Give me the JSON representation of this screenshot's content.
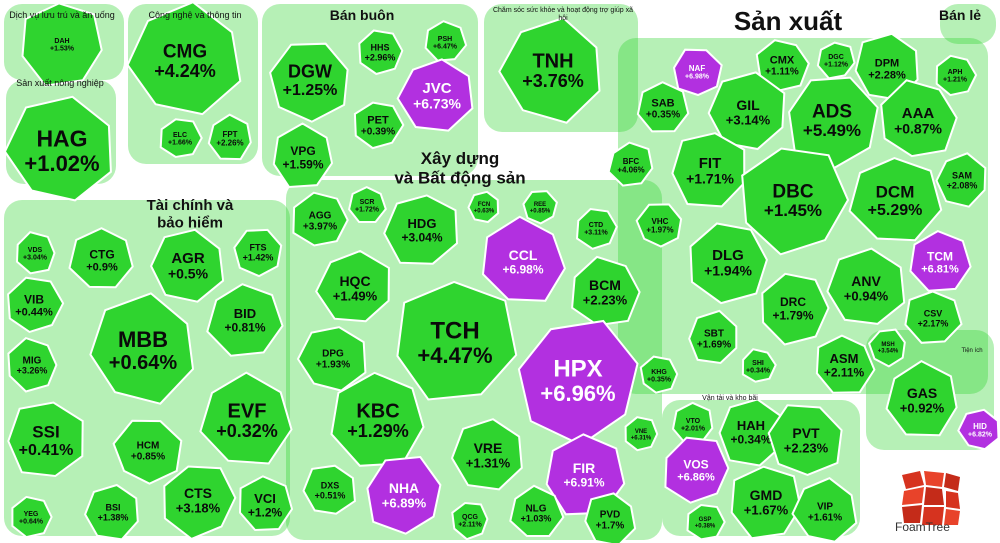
{
  "colors": {
    "up": "#2fd42f",
    "ceiling": "#b230e0",
    "bg": "#ffffff"
  },
  "groups": [
    {
      "name": "Dịch vụ lưu trú và ăn uống"
    },
    {
      "name": "Công nghệ và thông tin"
    },
    {
      "name": "Bán buôn"
    },
    {
      "name": "Chăm sóc sức khỏe và hoạt động trợ giúp xã hội"
    },
    {
      "name": "Sản xuất"
    },
    {
      "name": "Bán lẻ"
    },
    {
      "name": "Sản xuất nông nghiệp"
    },
    {
      "name": "Xây dựng và Bất động sản"
    },
    {
      "name": "Tài chính và bảo hiểm"
    },
    {
      "name": "Vận tải và kho bãi"
    },
    {
      "name": "Tiện ích"
    }
  ],
  "brand": "FoamTree",
  "chart_data": {
    "type": "treemap",
    "title": "",
    "series": [
      {
        "ticker": "DAH",
        "change": "+1.53%",
        "group": "Dịch vụ lưu trú và ăn uống",
        "ceiling": false
      },
      {
        "ticker": "CMG",
        "change": "+4.24%",
        "group": "Công nghệ và thông tin",
        "ceiling": false
      },
      {
        "ticker": "ELC",
        "change": "+1.66%",
        "group": "Công nghệ và thông tin",
        "ceiling": false
      },
      {
        "ticker": "FPT",
        "change": "+2.26%",
        "group": "Công nghệ và thông tin",
        "ceiling": false
      },
      {
        "ticker": "HAG",
        "change": "+1.02%",
        "group": "Sản xuất nông nghiệp",
        "ceiling": false
      },
      {
        "ticker": "DGW",
        "change": "+1.25%",
        "group": "Bán buôn",
        "ceiling": false
      },
      {
        "ticker": "HHS",
        "change": "+2.96%",
        "group": "Bán buôn",
        "ceiling": false
      },
      {
        "ticker": "PSH",
        "change": "+6.47%",
        "group": "Bán buôn",
        "ceiling": false
      },
      {
        "ticker": "JVC",
        "change": "+6.73%",
        "group": "Bán buôn",
        "ceiling": true
      },
      {
        "ticker": "PET",
        "change": "+0.39%",
        "group": "Bán buôn",
        "ceiling": false
      },
      {
        "ticker": "VPG",
        "change": "+1.59%",
        "group": "Bán buôn",
        "ceiling": false
      },
      {
        "ticker": "TNH",
        "change": "+3.76%",
        "group": "Chăm sóc sức khỏe và hoạt động trợ giúp xã hội",
        "ceiling": false
      },
      {
        "ticker": "NAF",
        "change": "+6.98%",
        "group": "Sản xuất",
        "ceiling": true
      },
      {
        "ticker": "CMX",
        "change": "+1.11%",
        "group": "Sản xuất",
        "ceiling": false
      },
      {
        "ticker": "DGC",
        "change": "+1.12%",
        "group": "Sản xuất",
        "ceiling": false
      },
      {
        "ticker": "DPM",
        "change": "+2.28%",
        "group": "Sản xuất",
        "ceiling": false
      },
      {
        "ticker": "APH",
        "change": "+1.21%",
        "group": "Sản xuất",
        "ceiling": false
      },
      {
        "ticker": "SAB",
        "change": "+0.35%",
        "group": "Sản xuất",
        "ceiling": false
      },
      {
        "ticker": "GIL",
        "change": "+3.14%",
        "group": "Sản xuất",
        "ceiling": false
      },
      {
        "ticker": "ADS",
        "change": "+5.49%",
        "group": "Sản xuất",
        "ceiling": false
      },
      {
        "ticker": "AAA",
        "change": "+0.87%",
        "group": "Sản xuất",
        "ceiling": false
      },
      {
        "ticker": "BFC",
        "change": "+4.06%",
        "group": "Sản xuất",
        "ceiling": false
      },
      {
        "ticker": "FIT",
        "change": "+1.71%",
        "group": "Sản xuất",
        "ceiling": false
      },
      {
        "ticker": "DBC",
        "change": "+1.45%",
        "group": "Sản xuất",
        "ceiling": false
      },
      {
        "ticker": "DCM",
        "change": "+5.29%",
        "group": "Sản xuất",
        "ceiling": false
      },
      {
        "ticker": "SAM",
        "change": "+2.08%",
        "group": "Sản xuất",
        "ceiling": false
      },
      {
        "ticker": "VHC",
        "change": "+1.97%",
        "group": "Sản xuất",
        "ceiling": false
      },
      {
        "ticker": "DLG",
        "change": "+1.94%",
        "group": "Sản xuất",
        "ceiling": false
      },
      {
        "ticker": "TCM",
        "change": "+6.81%",
        "group": "Sản xuất",
        "ceiling": true
      },
      {
        "ticker": "ANV",
        "change": "+0.94%",
        "group": "Sản xuất",
        "ceiling": false
      },
      {
        "ticker": "DRC",
        "change": "+1.79%",
        "group": "Sản xuất",
        "ceiling": false
      },
      {
        "ticker": "CSV",
        "change": "+2.17%",
        "group": "Sản xuất",
        "ceiling": false
      },
      {
        "ticker": "SBT",
        "change": "+1.69%",
        "group": "Sản xuất",
        "ceiling": false
      },
      {
        "ticker": "MSH",
        "change": "+3.54%",
        "group": "Sản xuất",
        "ceiling": false
      },
      {
        "ticker": "SHI",
        "change": "+0.34%",
        "group": "Sản xuất",
        "ceiling": false
      },
      {
        "ticker": "ASM",
        "change": "+2.11%",
        "group": "Sản xuất",
        "ceiling": false
      },
      {
        "ticker": "HDG",
        "change": "+3.04%",
        "group": "Xây dựng và Bất động sản",
        "ceiling": false
      },
      {
        "ticker": "AGG",
        "change": "+3.97%",
        "group": "Xây dựng và Bất động sản",
        "ceiling": false
      },
      {
        "ticker": "SCR",
        "change": "+1.72%",
        "group": "Xây dựng và Bất động sản",
        "ceiling": false
      },
      {
        "ticker": "FCN",
        "change": "+0.63%",
        "group": "Xây dựng và Bất động sản",
        "ceiling": false
      },
      {
        "ticker": "REE",
        "change": "+0.85%",
        "group": "Xây dựng và Bất động sản",
        "ceiling": false
      },
      {
        "ticker": "CTD",
        "change": "+3.11%",
        "group": "Xây dựng và Bất động sản",
        "ceiling": false
      },
      {
        "ticker": "CCL",
        "change": "+6.98%",
        "group": "Xây dựng và Bất động sản",
        "ceiling": true
      },
      {
        "ticker": "HQC",
        "change": "+1.49%",
        "group": "Xây dựng và Bất động sản",
        "ceiling": false
      },
      {
        "ticker": "BCM",
        "change": "+2.23%",
        "group": "Xây dựng và Bất động sản",
        "ceiling": false
      },
      {
        "ticker": "TCH",
        "change": "+4.47%",
        "group": "Xây dựng và Bất động sản",
        "ceiling": false
      },
      {
        "ticker": "DPG",
        "change": "+1.93%",
        "group": "Xây dựng và Bất động sản",
        "ceiling": false
      },
      {
        "ticker": "HPX",
        "change": "+6.96%",
        "group": "Xây dựng và Bất động sản",
        "ceiling": true
      },
      {
        "ticker": "KHG",
        "change": "+0.35%",
        "group": "Xây dựng và Bất động sản",
        "ceiling": false
      },
      {
        "ticker": "KBC",
        "change": "+1.29%",
        "group": "Xây dựng và Bất động sản",
        "ceiling": false
      },
      {
        "ticker": "VRE",
        "change": "+1.31%",
        "group": "Xây dựng và Bất động sản",
        "ceiling": false
      },
      {
        "ticker": "VNE",
        "change": "+6.31%",
        "group": "Xây dựng và Bất động sản",
        "ceiling": false
      },
      {
        "ticker": "FIR",
        "change": "+6.91%",
        "group": "Xây dựng và Bất động sản",
        "ceiling": true
      },
      {
        "ticker": "DXS",
        "change": "+0.51%",
        "group": "Xây dựng và Bất động sản",
        "ceiling": false
      },
      {
        "ticker": "NHA",
        "change": "+6.89%",
        "group": "Xây dựng và Bất động sản",
        "ceiling": true
      },
      {
        "ticker": "QCG",
        "change": "+2.11%",
        "group": "Xây dựng và Bất động sản",
        "ceiling": false
      },
      {
        "ticker": "NLG",
        "change": "+1.03%",
        "group": "Xây dựng và Bất động sản",
        "ceiling": false
      },
      {
        "ticker": "PVD",
        "change": "+1.7%",
        "group": "Xây dựng và Bất động sản",
        "ceiling": false
      },
      {
        "ticker": "VDS",
        "change": "+3.04%",
        "group": "Tài chính và bảo hiểm",
        "ceiling": false
      },
      {
        "ticker": "CTG",
        "change": "+0.9%",
        "group": "Tài chính và bảo hiểm",
        "ceiling": false
      },
      {
        "ticker": "AGR",
        "change": "+0.5%",
        "group": "Tài chính và bảo hiểm",
        "ceiling": false
      },
      {
        "ticker": "FTS",
        "change": "+1.42%",
        "group": "Tài chính và bảo hiểm",
        "ceiling": false
      },
      {
        "ticker": "VIB",
        "change": "+0.44%",
        "group": "Tài chính và bảo hiểm",
        "ceiling": false
      },
      {
        "ticker": "BID",
        "change": "+0.81%",
        "group": "Tài chính và bảo hiểm",
        "ceiling": false
      },
      {
        "ticker": "MBB",
        "change": "+0.64%",
        "group": "Tài chính và bảo hiểm",
        "ceiling": false
      },
      {
        "ticker": "MIG",
        "change": "+3.26%",
        "group": "Tài chính và bảo hiểm",
        "ceiling": false
      },
      {
        "ticker": "EVF",
        "change": "+0.32%",
        "group": "Tài chính và bảo hiểm",
        "ceiling": false
      },
      {
        "ticker": "SSI",
        "change": "+0.41%",
        "group": "Tài chính và bảo hiểm",
        "ceiling": false
      },
      {
        "ticker": "HCM",
        "change": "+0.85%",
        "group": "Tài chính và bảo hiểm",
        "ceiling": false
      },
      {
        "ticker": "CTS",
        "change": "+3.18%",
        "group": "Tài chính và bảo hiểm",
        "ceiling": false
      },
      {
        "ticker": "VCI",
        "change": "+1.2%",
        "group": "Tài chính và bảo hiểm",
        "ceiling": false
      },
      {
        "ticker": "BSI",
        "change": "+1.38%",
        "group": "Tài chính và bảo hiểm",
        "ceiling": false
      },
      {
        "ticker": "YEG",
        "change": "+0.64%",
        "group": "Tài chính và bảo hiểm",
        "ceiling": false
      },
      {
        "ticker": "VTO",
        "change": "+2.01%",
        "group": "Vận tải và kho bãi",
        "ceiling": false
      },
      {
        "ticker": "HAH",
        "change": "+0.34%",
        "group": "Vận tải và kho bãi",
        "ceiling": false
      },
      {
        "ticker": "PVT",
        "change": "+2.23%",
        "group": "Vận tải và kho bãi",
        "ceiling": false
      },
      {
        "ticker": "VOS",
        "change": "+6.86%",
        "group": "Vận tải và kho bãi",
        "ceiling": true
      },
      {
        "ticker": "GMD",
        "change": "+1.67%",
        "group": "Vận tải và kho bãi",
        "ceiling": false
      },
      {
        "ticker": "VIP",
        "change": "+1.61%",
        "group": "Vận tải và kho bãi",
        "ceiling": false
      },
      {
        "ticker": "GSP",
        "change": "+0.38%",
        "group": "Vận tải và kho bãi",
        "ceiling": false
      },
      {
        "ticker": "GAS",
        "change": "+0.92%",
        "group": "Tiện ích",
        "ceiling": false
      },
      {
        "ticker": "HID",
        "change": "+6.82%",
        "group": "Tiện ích",
        "ceiling": true
      }
    ]
  }
}
